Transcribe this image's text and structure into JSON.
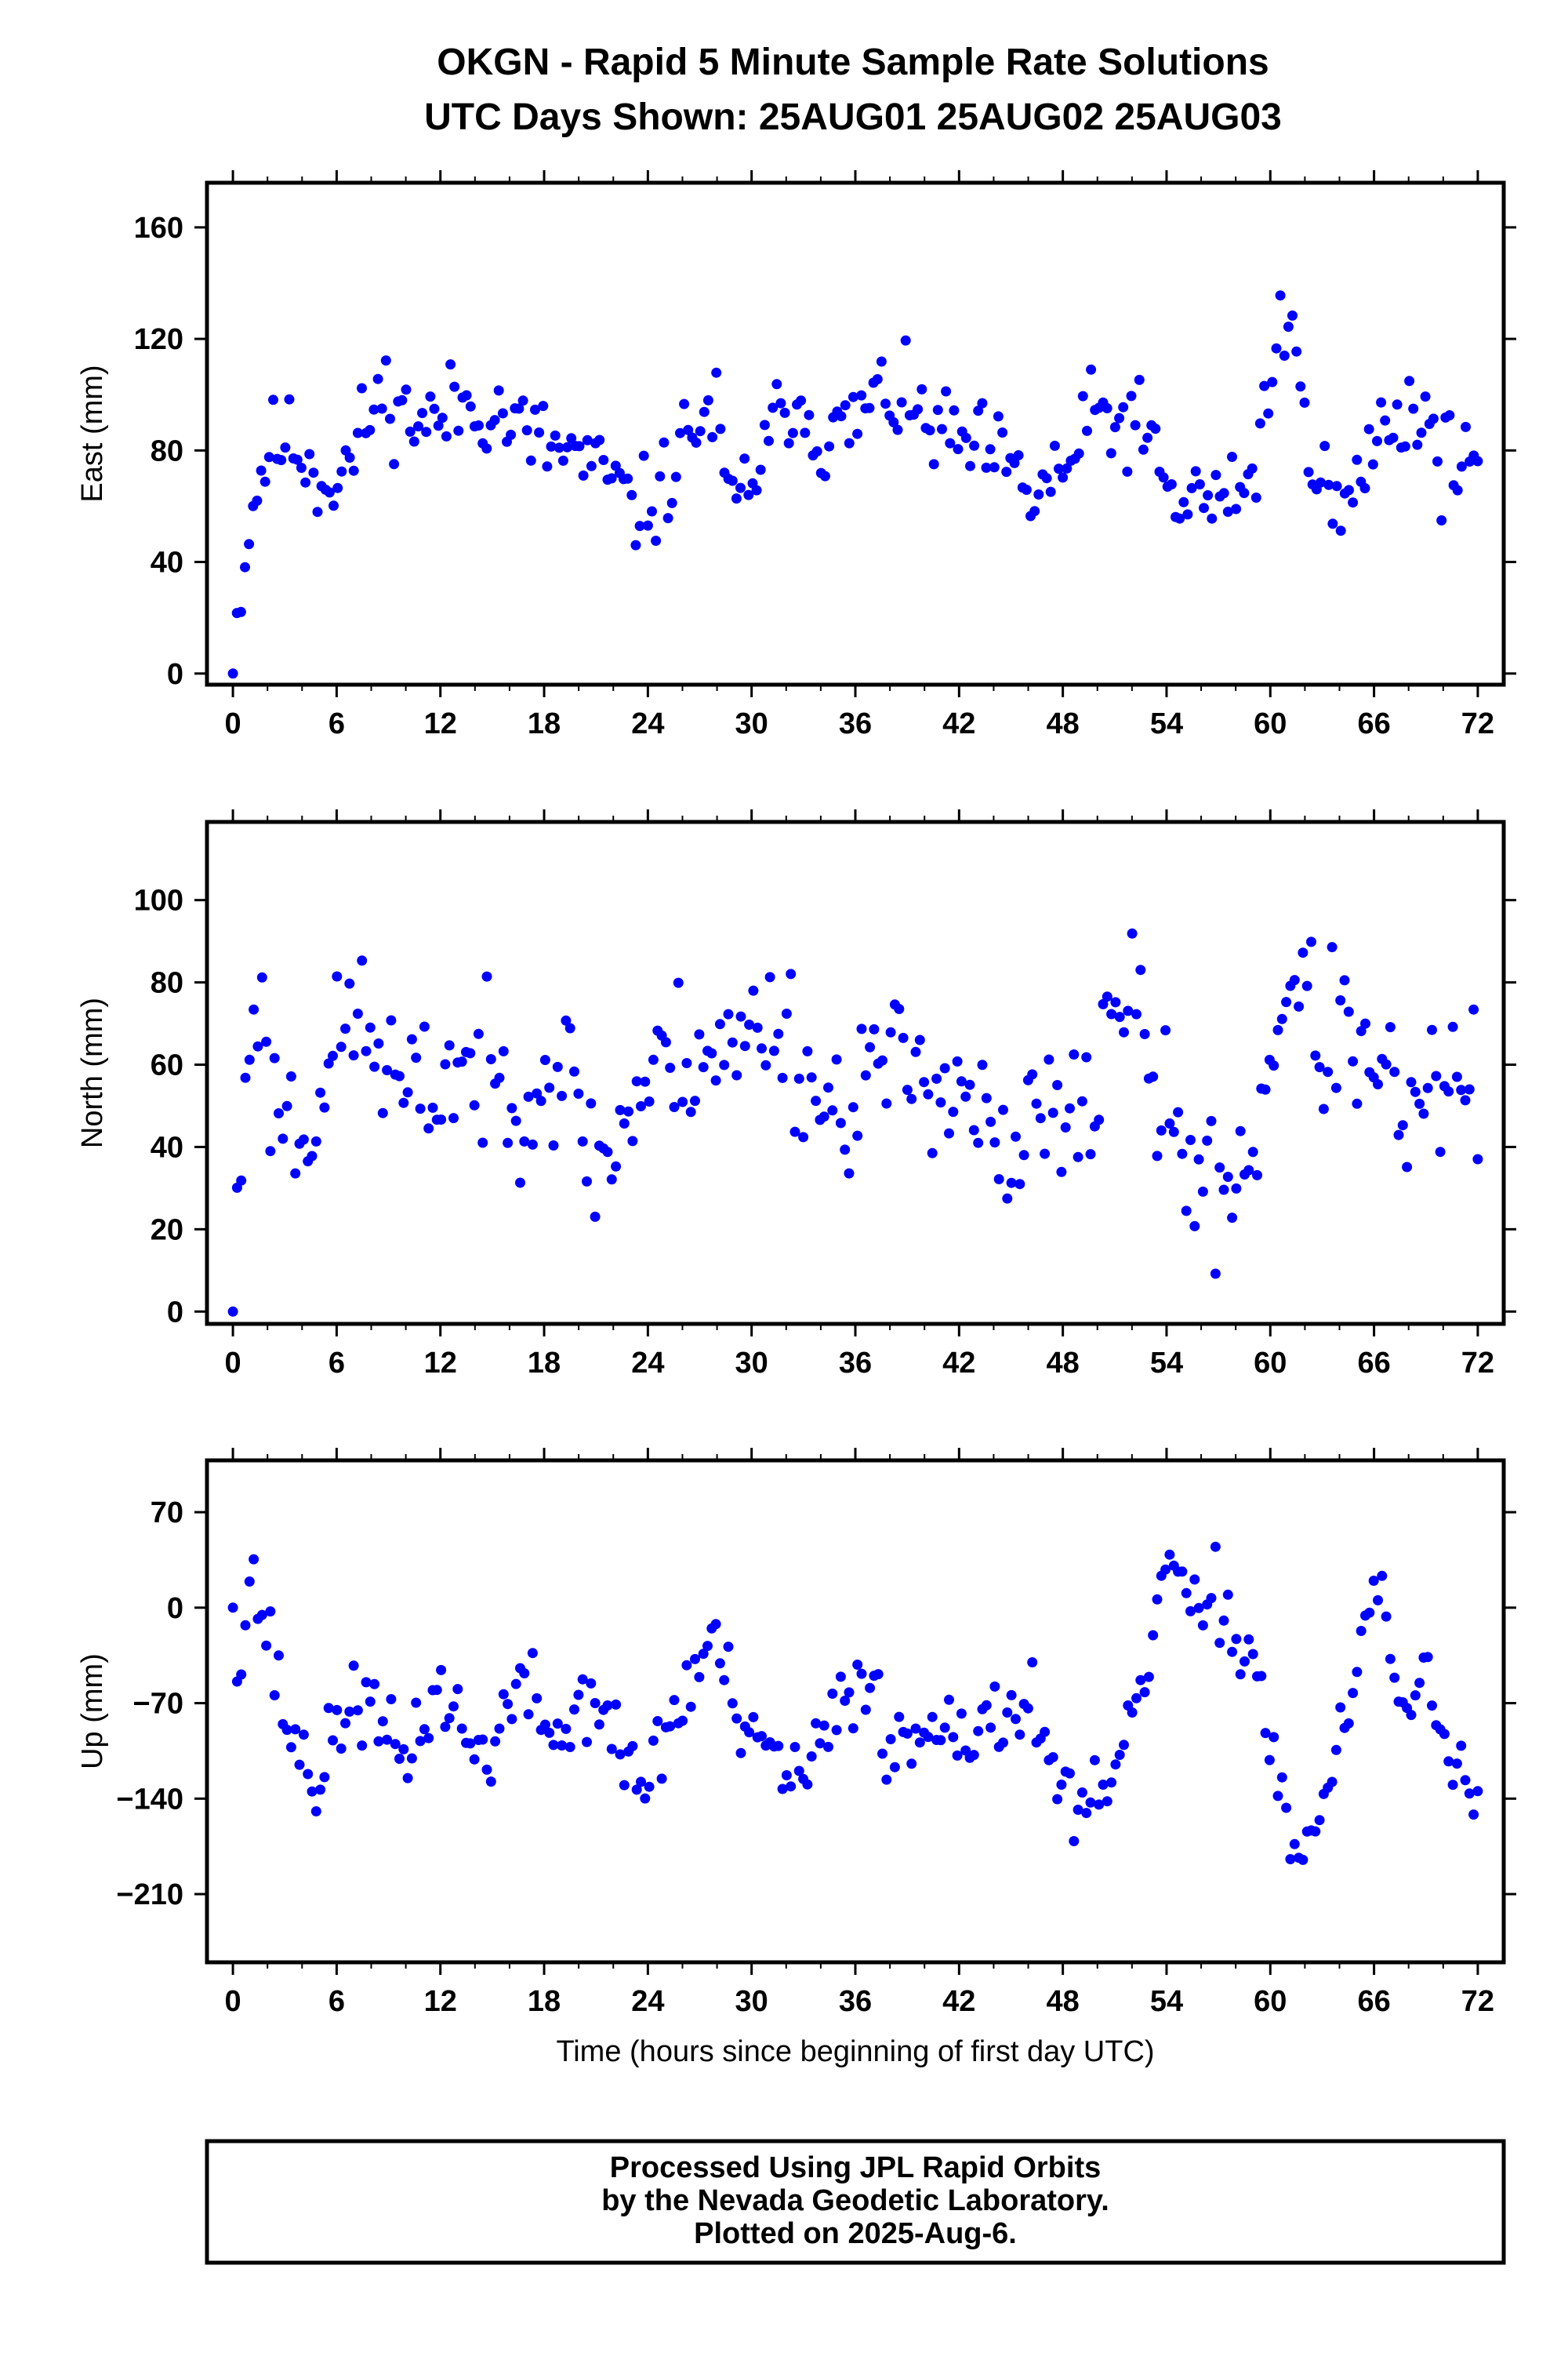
{
  "title_line1": "OKGN - Rapid 5 Minute Sample Rate Solutions",
  "title_line2": "UTC Days Shown:  25AUG01 25AUG02 25AUG03",
  "footer_lines": [
    "Processed Using JPL Rapid Orbits",
    "by the Nevada Geodetic Laboratory.",
    "Plotted on 2025-Aug-6."
  ],
  "colors": {
    "marker": "#0000ff",
    "frame": "#000000"
  },
  "chart_data": [
    {
      "type": "scatter",
      "ylabel": "East (mm)",
      "xlabel": "",
      "xlim": [
        -1.5,
        73.5
      ],
      "ylim": [
        -4,
        176
      ],
      "xticks": [
        0,
        6,
        12,
        18,
        24,
        30,
        36,
        42,
        48,
        54,
        60,
        66,
        72
      ],
      "yticks": [
        0,
        40,
        80,
        120,
        160
      ],
      "ytick_labels": [
        "0",
        "40",
        "80",
        "120",
        "160"
      ],
      "anchors": [
        [
          0,
          0
        ],
        [
          0.3,
          25
        ],
        [
          0.7,
          42
        ],
        [
          1.3,
          65
        ],
        [
          2,
          80
        ],
        [
          3,
          84
        ],
        [
          4,
          80
        ],
        [
          5,
          70
        ],
        [
          6,
          70
        ],
        [
          7,
          78
        ],
        [
          8,
          95
        ],
        [
          9,
          101
        ],
        [
          10,
          92
        ],
        [
          12,
          90
        ],
        [
          13,
          97
        ],
        [
          15,
          95
        ],
        [
          16,
          90
        ],
        [
          18,
          82
        ],
        [
          20,
          78
        ],
        [
          21,
          72
        ],
        [
          22,
          70
        ],
        [
          23,
          58
        ],
        [
          24,
          60
        ],
        [
          25,
          67
        ],
        [
          26,
          82
        ],
        [
          27,
          92
        ],
        [
          28,
          92
        ],
        [
          28.5,
          65
        ],
        [
          29,
          58
        ],
        [
          30,
          72
        ],
        [
          31,
          80
        ],
        [
          32,
          100
        ],
        [
          33,
          96
        ],
        [
          34,
          85
        ],
        [
          35,
          85
        ],
        [
          36,
          90
        ],
        [
          37,
          98
        ],
        [
          38,
          100
        ],
        [
          40,
          90
        ],
        [
          42,
          82
        ],
        [
          44,
          78
        ],
        [
          45,
          72
        ],
        [
          46,
          62
        ],
        [
          47,
          68
        ],
        [
          48,
          72
        ],
        [
          49,
          82
        ],
        [
          50,
          95
        ],
        [
          51,
          88
        ],
        [
          52,
          92
        ],
        [
          53,
          82
        ],
        [
          54,
          65
        ],
        [
          55,
          60
        ],
        [
          56,
          66
        ],
        [
          57,
          58
        ],
        [
          58,
          68
        ],
        [
          59,
          70
        ],
        [
          60,
          105
        ],
        [
          60.7,
          130
        ],
        [
          61.3,
          115
        ],
        [
          62,
          95
        ],
        [
          63,
          70
        ],
        [
          64,
          55
        ],
        [
          65,
          65
        ],
        [
          66,
          85
        ],
        [
          67,
          92
        ],
        [
          68,
          95
        ],
        [
          69,
          92
        ],
        [
          70,
          75
        ],
        [
          71,
          80
        ],
        [
          72,
          78
        ]
      ],
      "scatter": 12,
      "n_points": 310,
      "seed": 11
    },
    {
      "type": "scatter",
      "ylabel": "North (mm)",
      "xlabel": "",
      "xlim": [
        -1.5,
        73.5
      ],
      "ylim": [
        -3,
        119
      ],
      "xticks": [
        0,
        6,
        12,
        18,
        24,
        30,
        36,
        42,
        48,
        54,
        60,
        66,
        72
      ],
      "yticks": [
        0,
        20,
        40,
        60,
        80,
        100
      ],
      "ytick_labels": [
        "0",
        "20",
        "40",
        "60",
        "80",
        "100"
      ],
      "anchors": [
        [
          0,
          0
        ],
        [
          0.3,
          25
        ],
        [
          0.8,
          60
        ],
        [
          1.3,
          85
        ],
        [
          2,
          55
        ],
        [
          3,
          50
        ],
        [
          4,
          42
        ],
        [
          5,
          55
        ],
        [
          6,
          62
        ],
        [
          7,
          75
        ],
        [
          8,
          65
        ],
        [
          9,
          60
        ],
        [
          10,
          50
        ],
        [
          12,
          55
        ],
        [
          13,
          62
        ],
        [
          15,
          55
        ],
        [
          17,
          55
        ],
        [
          19,
          60
        ],
        [
          20,
          50
        ],
        [
          21,
          35
        ],
        [
          22,
          40
        ],
        [
          23,
          50
        ],
        [
          24,
          55
        ],
        [
          25,
          60
        ],
        [
          27,
          65
        ],
        [
          29,
          62
        ],
        [
          30,
          68
        ],
        [
          31,
          72
        ],
        [
          32,
          70
        ],
        [
          33,
          58
        ],
        [
          34,
          52
        ],
        [
          35,
          48
        ],
        [
          36,
          55
        ],
        [
          37,
          60
        ],
        [
          38,
          58
        ],
        [
          40,
          60
        ],
        [
          42,
          55
        ],
        [
          43,
          50
        ],
        [
          44,
          40
        ],
        [
          45,
          28
        ],
        [
          46,
          45
        ],
        [
          47,
          50
        ],
        [
          48,
          40
        ],
        [
          49,
          50
        ],
        [
          50,
          55
        ],
        [
          51,
          80
        ],
        [
          52,
          75
        ],
        [
          53,
          60
        ],
        [
          54,
          45
        ],
        [
          55,
          40
        ],
        [
          56,
          30
        ],
        [
          57,
          28
        ],
        [
          58,
          35
        ],
        [
          59,
          40
        ],
        [
          60,
          60
        ],
        [
          61,
          85
        ],
        [
          62,
          75
        ],
        [
          63,
          65
        ],
        [
          64,
          70
        ],
        [
          65,
          65
        ],
        [
          66,
          52
        ],
        [
          67,
          55
        ],
        [
          68,
          45
        ],
        [
          69,
          48
        ],
        [
          70,
          55
        ],
        [
          71,
          58
        ],
        [
          72,
          55
        ]
      ],
      "scatter": 13,
      "n_points": 300,
      "seed": 23
    },
    {
      "type": "scatter",
      "ylabel": "Up (mm)",
      "xlabel": "Time (hours since beginning of first day UTC)",
      "xlim": [
        -1.5,
        73.5
      ],
      "ylim": [
        -260,
        108
      ],
      "xticks": [
        0,
        6,
        12,
        18,
        24,
        30,
        36,
        42,
        48,
        54,
        60,
        66,
        72
      ],
      "yticks": [
        70,
        0,
        -70,
        -140,
        -210
      ],
      "ytick_labels": [
        "70",
        "0",
        "−70",
        "−140",
        "−210"
      ],
      "anchors": [
        [
          0,
          0
        ],
        [
          0.5,
          -40
        ],
        [
          1,
          30
        ],
        [
          2,
          -20
        ],
        [
          3,
          -80
        ],
        [
          4,
          -110
        ],
        [
          5,
          -130
        ],
        [
          6,
          -90
        ],
        [
          7,
          -60
        ],
        [
          8,
          -80
        ],
        [
          9,
          -100
        ],
        [
          10,
          -110
        ],
        [
          11,
          -80
        ],
        [
          12,
          -60
        ],
        [
          13,
          -80
        ],
        [
          14,
          -110
        ],
        [
          15,
          -100
        ],
        [
          16,
          -70
        ],
        [
          17,
          -60
        ],
        [
          18,
          -80
        ],
        [
          19,
          -100
        ],
        [
          20,
          -70
        ],
        [
          21,
          -60
        ],
        [
          22,
          -100
        ],
        [
          23,
          -120
        ],
        [
          24,
          -130
        ],
        [
          25,
          -90
        ],
        [
          26,
          -70
        ],
        [
          27,
          -40
        ],
        [
          28,
          -20
        ],
        [
          29,
          -80
        ],
        [
          30,
          -110
        ],
        [
          31,
          -100
        ],
        [
          32,
          -120
        ],
        [
          33,
          -130
        ],
        [
          34,
          -100
        ],
        [
          35,
          -80
        ],
        [
          36,
          -60
        ],
        [
          37,
          -40
        ],
        [
          38,
          -110
        ],
        [
          39,
          -100
        ],
        [
          40,
          -90
        ],
        [
          41,
          -70
        ],
        [
          42,
          -80
        ],
        [
          43,
          -100
        ],
        [
          44,
          -90
        ],
        [
          45,
          -70
        ],
        [
          46,
          -60
        ],
        [
          47,
          -100
        ],
        [
          48,
          -130
        ],
        [
          49,
          -160
        ],
        [
          50,
          -150
        ],
        [
          51,
          -120
        ],
        [
          52,
          -100
        ],
        [
          53,
          -30
        ],
        [
          54,
          40
        ],
        [
          55,
          10
        ],
        [
          56,
          -20
        ],
        [
          57,
          10
        ],
        [
          58,
          -20
        ],
        [
          59,
          -30
        ],
        [
          60,
          -100
        ],
        [
          61,
          -150
        ],
        [
          62,
          -190
        ],
        [
          63,
          -140
        ],
        [
          64,
          -110
        ],
        [
          65,
          -50
        ],
        [
          66,
          20
        ],
        [
          67,
          -40
        ],
        [
          68,
          -70
        ],
        [
          69,
          -60
        ],
        [
          70,
          -80
        ],
        [
          71,
          -120
        ],
        [
          72,
          -140
        ]
      ],
      "scatter": 22,
      "n_points": 300,
      "seed": 37
    }
  ]
}
